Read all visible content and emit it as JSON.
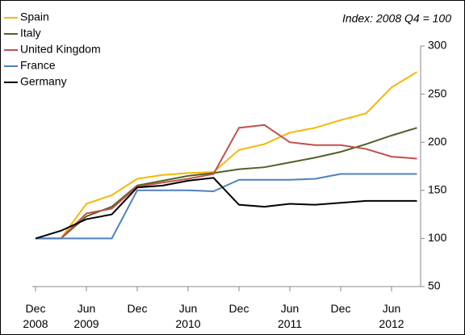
{
  "chart_data": {
    "type": "line",
    "annotation": "Index: 2008 Q4 = 100",
    "categories": [
      "Dec\n2008",
      null,
      "Jun\n2009",
      null,
      "Dec",
      null,
      "Jun\n2010",
      null,
      "Dec",
      null,
      "Jun\n2011",
      null,
      "Dec",
      null,
      "Jun\n2012",
      null
    ],
    "series": [
      {
        "name": "Spain",
        "color": "#f5b800",
        "values": [
          100,
          100,
          136,
          145,
          162,
          166,
          168,
          169,
          192,
          198,
          210,
          215,
          223,
          230,
          257,
          273
        ]
      },
      {
        "name": "Italy",
        "color": "#4f6228",
        "values": [
          100,
          100,
          123,
          133,
          155,
          160,
          165,
          168,
          172,
          174,
          179,
          184,
          190,
          198,
          207,
          215
        ]
      },
      {
        "name": "United Kingdom",
        "color": "#c0504d",
        "values": [
          100,
          100,
          126,
          131,
          154,
          158,
          162,
          167,
          215,
          218,
          200,
          197,
          197,
          193,
          185,
          183
        ]
      },
      {
        "name": "France",
        "color": "#4f81bd",
        "values": [
          100,
          100,
          100,
          100,
          150,
          150,
          150,
          149,
          161,
          161,
          161,
          162,
          167,
          167,
          167,
          167
        ]
      },
      {
        "name": "Germany",
        "color": "#000000",
        "values": [
          100,
          108,
          120,
          125,
          153,
          155,
          160,
          163,
          135,
          133,
          136,
          135,
          137,
          139,
          139,
          139
        ]
      }
    ],
    "ylim": [
      50,
      300
    ],
    "yticks": [
      50,
      100,
      150,
      200,
      250,
      300
    ],
    "y_axis_side": "right",
    "grid": false
  }
}
